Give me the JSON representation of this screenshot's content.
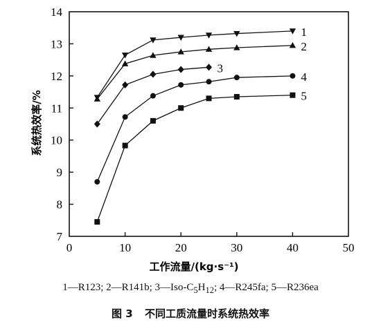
{
  "chart_data": {
    "type": "line",
    "xlabel": "工作流量/(kg·s⁻¹)",
    "ylabel": "系统热效率/%",
    "xlim": [
      0,
      50
    ],
    "ylim": [
      7,
      14
    ],
    "xticks": [
      0,
      10,
      20,
      30,
      40,
      50
    ],
    "xtick_labels": [
      "0",
      "10",
      "20",
      "30",
      "40",
      "50"
    ],
    "yticks": [
      7,
      8,
      9,
      10,
      11,
      12,
      13,
      14
    ],
    "ytick_labels": [
      "7",
      "8",
      "9",
      "10",
      "11",
      "12",
      "13",
      "14"
    ],
    "grid": false,
    "series": [
      {
        "name": "1",
        "marker": "triangle-down",
        "x": [
          5,
          10,
          15,
          20,
          25,
          30,
          40
        ],
        "values": [
          11.33,
          12.65,
          13.12,
          13.2,
          13.27,
          13.32,
          13.4
        ]
      },
      {
        "name": "2",
        "marker": "triangle-up",
        "x": [
          5,
          10,
          15,
          20,
          25,
          30,
          40
        ],
        "values": [
          11.28,
          12.38,
          12.64,
          12.75,
          12.83,
          12.88,
          12.95
        ]
      },
      {
        "name": "3",
        "marker": "diamond",
        "x": [
          5,
          10,
          15,
          20,
          25
        ],
        "values": [
          10.5,
          11.72,
          12.05,
          12.2,
          12.27
        ]
      },
      {
        "name": "4",
        "marker": "circle",
        "x": [
          5,
          10,
          15,
          20,
          25,
          30,
          40
        ],
        "values": [
          8.7,
          10.72,
          11.38,
          11.72,
          11.82,
          11.95,
          12.0
        ]
      },
      {
        "name": "5",
        "marker": "square",
        "x": [
          5,
          10,
          15,
          20,
          25,
          30,
          40
        ],
        "values": [
          7.45,
          9.83,
          10.6,
          11.0,
          11.3,
          11.35,
          11.4
        ]
      }
    ]
  },
  "legend_text": {
    "part1": "1—R123; 2—R141b; 3—Iso-C",
    "sub1": "5",
    "part2": "H",
    "sub2": "12",
    "part3": "; 4—R245fa; 5—R236ea"
  },
  "caption": {
    "label": "图 3",
    "title": "不同工质流量时系统热效率"
  }
}
